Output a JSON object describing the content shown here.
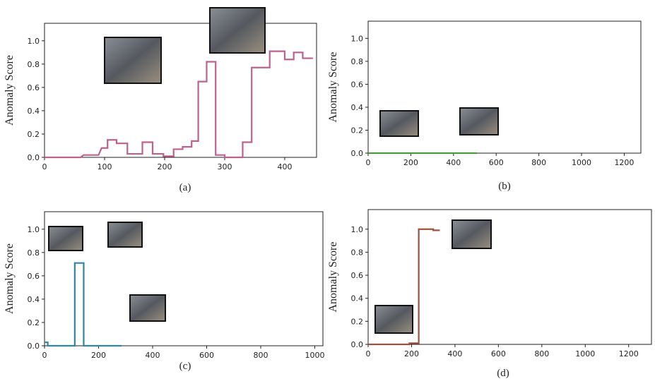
{
  "chart_data": [
    {
      "type": "line",
      "caption": "(a)",
      "ylabel": "Anomaly Score",
      "color": "#c0608f",
      "x": [
        0,
        60,
        65,
        90,
        95,
        105,
        105,
        120,
        120,
        138,
        138,
        163,
        163,
        180,
        180,
        198,
        198,
        215,
        215,
        230,
        230,
        245,
        245,
        256,
        256,
        270,
        270,
        285,
        285,
        300,
        300,
        330,
        330,
        345,
        345,
        375,
        375,
        400,
        400,
        415,
        415,
        430,
        430,
        447
      ],
      "values": [
        0.0,
        0.0,
        0.02,
        0.02,
        0.08,
        0.08,
        0.15,
        0.15,
        0.12,
        0.12,
        0.03,
        0.03,
        0.13,
        0.13,
        0.03,
        0.03,
        0.01,
        0.01,
        0.07,
        0.07,
        0.09,
        0.09,
        0.14,
        0.14,
        0.65,
        0.65,
        0.82,
        0.82,
        0.02,
        0.02,
        0.0,
        0.0,
        0.13,
        0.13,
        0.77,
        0.77,
        0.91,
        0.91,
        0.84,
        0.84,
        0.9,
        0.9,
        0.85,
        0.85
      ],
      "xlim": [
        0,
        453
      ],
      "ylim": [
        0,
        1.15
      ],
      "xticks": [
        0,
        100,
        200,
        300,
        400
      ],
      "yticks": [
        {
          "value": 0,
          "label": "0.0"
        },
        {
          "value": 0.2,
          "label": "0.2"
        },
        {
          "value": 0.4,
          "label": "0.4"
        },
        {
          "value": 0.6,
          "label": "0.6"
        },
        {
          "value": 0.8,
          "label": "0.8"
        },
        {
          "value": 1.0,
          "label": "1.0"
        }
      ]
    },
    {
      "type": "line",
      "caption": "(b)",
      "ylabel": "Anomaly Score",
      "color": "#4a9a3a",
      "x": [
        0,
        510
      ],
      "values": [
        0.0,
        0.0
      ],
      "xlim": [
        0,
        1278
      ],
      "ylim": [
        0,
        1.15
      ],
      "xticks": [
        0,
        200,
        400,
        600,
        800,
        1000,
        1200
      ],
      "yticks": [
        {
          "value": 0,
          "label": "0.0"
        },
        {
          "value": 0.2,
          "label": "0.2"
        },
        {
          "value": 0.4,
          "label": "0.4"
        },
        {
          "value": 0.6,
          "label": "0.6"
        },
        {
          "value": 0.8,
          "label": "0.8"
        },
        {
          "value": 1.0,
          "label": "1.0"
        }
      ]
    },
    {
      "type": "line",
      "caption": "(c)",
      "ylabel": "Anomaly Score",
      "color": "#2f86a6",
      "x": [
        0,
        12,
        12,
        112,
        112,
        145,
        145,
        285
      ],
      "values": [
        0.03,
        0.03,
        0.0,
        0.0,
        0.71,
        0.71,
        0.0,
        0.0
      ],
      "xlim": [
        0,
        1030
      ],
      "ylim": [
        0,
        1.15
      ],
      "xticks": [
        0,
        200,
        400,
        600,
        800,
        1000
      ],
      "yticks": [
        {
          "value": 0,
          "label": "0.0"
        },
        {
          "value": 0.2,
          "label": "0.2"
        },
        {
          "value": 0.4,
          "label": "0.4"
        },
        {
          "value": 0.6,
          "label": "0.6"
        },
        {
          "value": 0.8,
          "label": "0.8"
        },
        {
          "value": 1.0,
          "label": "1.0"
        }
      ]
    },
    {
      "type": "line",
      "caption": "(d)",
      "ylabel": "Anomaly Score",
      "color": "#a0503f",
      "x": [
        0,
        190,
        190,
        233,
        233,
        300,
        300,
        330
      ],
      "values": [
        0.0,
        0.0,
        0.01,
        0.01,
        1.0,
        1.0,
        0.99,
        0.99
      ],
      "xlim": [
        0,
        1305
      ],
      "ylim": [
        0,
        1.17
      ],
      "xticks": [
        0,
        200,
        400,
        600,
        800,
        1000,
        1200
      ],
      "yticks": [
        {
          "value": 0,
          "label": "0.0"
        },
        {
          "value": 0.2,
          "label": "0.2"
        },
        {
          "value": 0.4,
          "label": "0.4"
        },
        {
          "value": 0.6,
          "label": "0.6"
        },
        {
          "value": 0.8,
          "label": "0.8"
        },
        {
          "value": 1.0,
          "label": "1.0"
        }
      ]
    }
  ]
}
